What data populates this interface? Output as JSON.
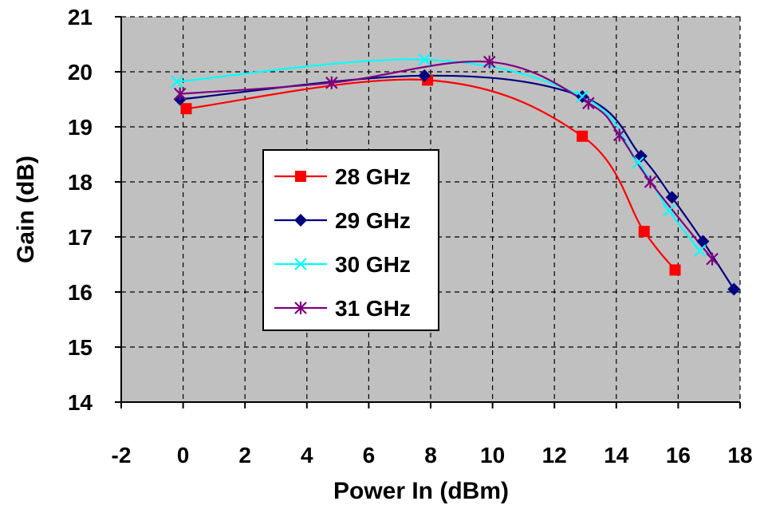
{
  "chart_data": {
    "type": "line",
    "title": "",
    "xlabel": "Power In (dBm)",
    "ylabel": "Gain (dB)",
    "xlim": [
      -2,
      18
    ],
    "ylim": [
      14,
      21
    ],
    "xticks": [
      -2,
      0,
      2,
      4,
      6,
      8,
      10,
      12,
      14,
      16,
      18
    ],
    "yticks": [
      14,
      15,
      16,
      17,
      18,
      19,
      20,
      21
    ],
    "grid": true,
    "grid_style": "dashed",
    "plot_background": "#c0c0c0",
    "legend_position": "center-left",
    "series": [
      {
        "name": "28 GHz",
        "color": "#ff0000",
        "marker": "square",
        "x": [
          0.1,
          7.9,
          12.9,
          14.9,
          15.9
        ],
        "y": [
          19.33,
          19.85,
          18.83,
          17.1,
          16.4
        ]
      },
      {
        "name": "29 GHz",
        "color": "#000080",
        "marker": "diamond",
        "x": [
          -0.1,
          7.8,
          12.9,
          14.8,
          15.8,
          16.8,
          17.8
        ],
        "y": [
          19.5,
          19.93,
          19.55,
          18.47,
          17.72,
          16.92,
          16.05
        ]
      },
      {
        "name": "30 GHz",
        "color": "#00ffff",
        "marker": "x",
        "x": [
          -0.2,
          7.8,
          12.9,
          14.7,
          15.7,
          16.7
        ],
        "y": [
          19.82,
          20.22,
          19.55,
          18.35,
          17.48,
          16.75
        ]
      },
      {
        "name": "31 GHz",
        "color": "#800080",
        "marker": "star",
        "x": [
          -0.1,
          4.8,
          9.9,
          13.1,
          14.1,
          15.1,
          17.1
        ],
        "y": [
          19.6,
          19.8,
          20.18,
          19.43,
          18.85,
          18.0,
          16.6
        ]
      }
    ]
  }
}
